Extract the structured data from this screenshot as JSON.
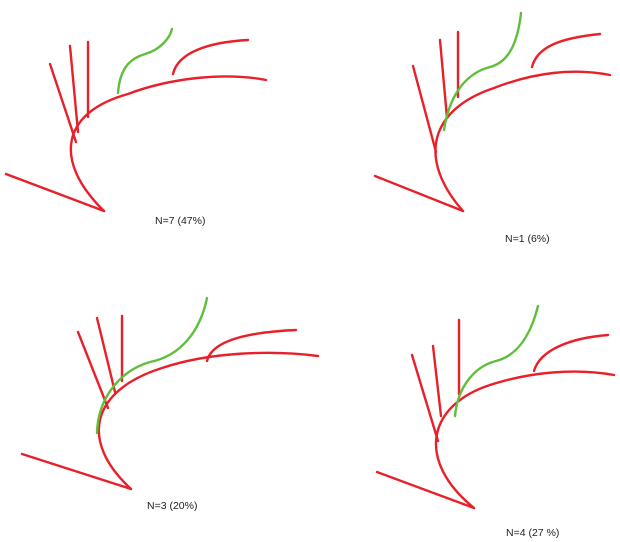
{
  "colors": {
    "vessel": "#e8202a",
    "variant": "#5fbe3a"
  },
  "panels": [
    {
      "caption": "N=7 (47%)",
      "green_branch_from": "mid-arch"
    },
    {
      "caption": "N=1 (6%)",
      "green_branch_from": "proximal-arch"
    },
    {
      "caption": "N=3 (20%)",
      "green_branch_from": "proximal-arch"
    },
    {
      "caption": "N=4 (27 %)",
      "green_branch_from": "proximal-arch"
    }
  ]
}
